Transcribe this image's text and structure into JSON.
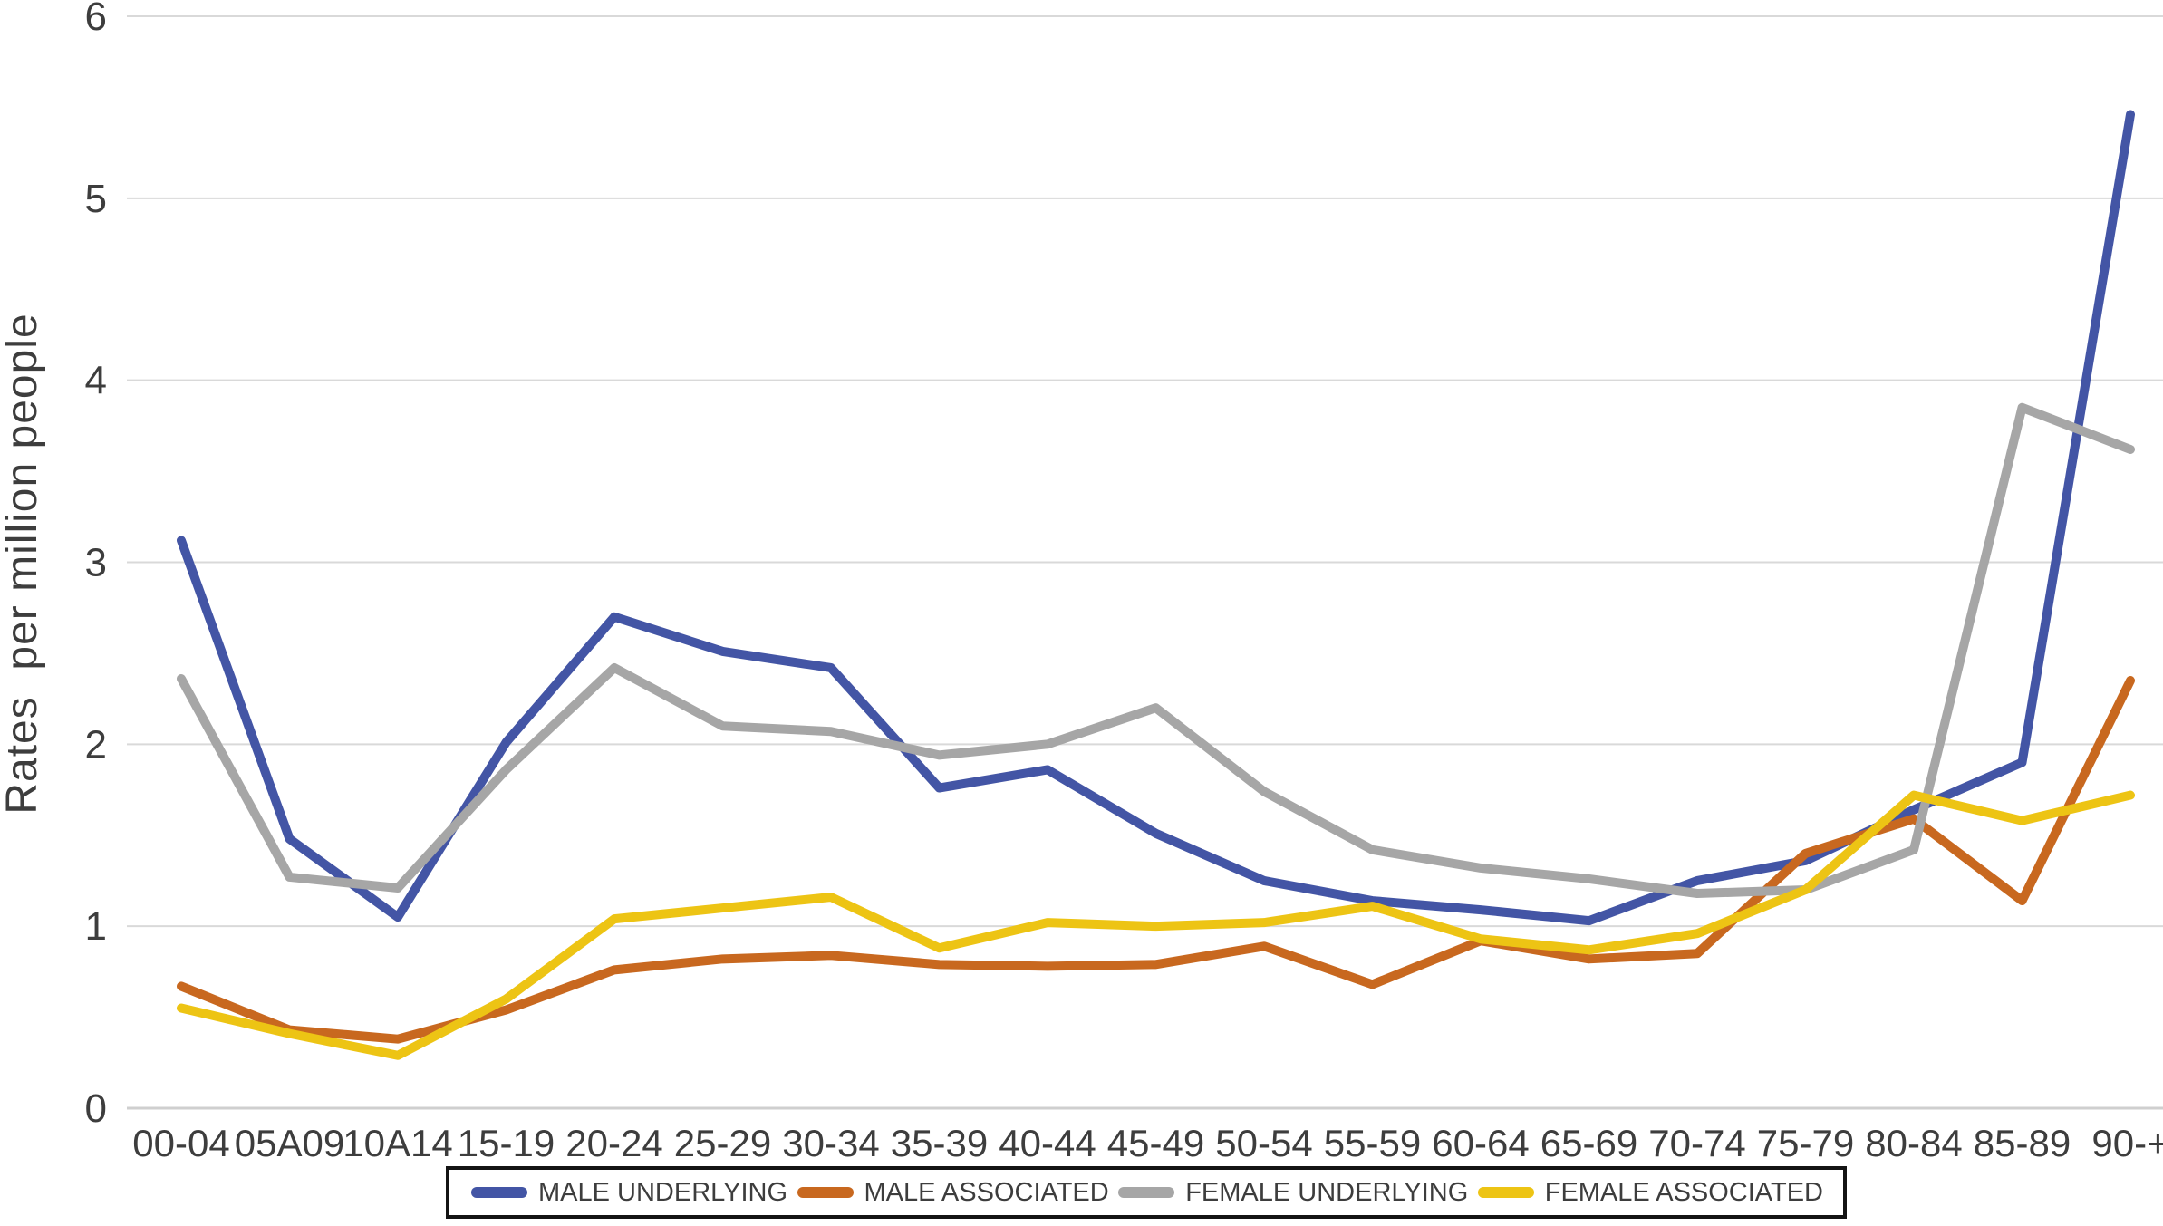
{
  "figure": {
    "background": "#ffffff",
    "text_color": "#3d3d3d",
    "gridline_color": "#d9d9d9",
    "axis_line_color": "#cfcfcf",
    "legend_border_color": "#141414"
  },
  "chart_data": {
    "type": "line",
    "title": "",
    "xlabel": "",
    "ylabel": "Rates  per million people",
    "ylim": [
      0,
      6
    ],
    "yticks": [
      0,
      1,
      2,
      3,
      4,
      5,
      6
    ],
    "grid": "horizontal",
    "legend_position": "bottom",
    "categories": [
      "00-04",
      "05A09",
      "10A14",
      "15-19",
      "20-24",
      "25-29",
      "30-34",
      "35-39",
      "40-44",
      "45-49",
      "50-54",
      "55-59",
      "60-64",
      "65-69",
      "70-74",
      "75-79",
      "80-84",
      "85-89",
      "90-+"
    ],
    "series": [
      {
        "name": "MALE UNDERLYING",
        "color": "#4355a5",
        "values": [
          3.12,
          1.48,
          1.05,
          2.01,
          2.7,
          2.51,
          2.42,
          1.76,
          1.86,
          1.51,
          1.25,
          1.14,
          1.09,
          1.03,
          1.25,
          1.36,
          1.64,
          1.9,
          5.46
        ]
      },
      {
        "name": "MALE ASSOCIATED",
        "color": "#c8681f",
        "values": [
          0.67,
          0.43,
          0.38,
          0.54,
          0.76,
          0.82,
          0.84,
          0.79,
          0.78,
          0.79,
          0.89,
          0.68,
          0.92,
          0.82,
          0.85,
          1.4,
          1.59,
          1.14,
          2.35
        ]
      },
      {
        "name": "FEMALE UNDERLYING",
        "color": "#a6a6a6",
        "values": [
          2.36,
          1.27,
          1.21,
          1.86,
          2.42,
          2.1,
          2.07,
          1.94,
          2.0,
          2.2,
          1.74,
          1.42,
          1.32,
          1.26,
          1.18,
          1.2,
          1.42,
          3.85,
          3.62
        ]
      },
      {
        "name": "FEMALE ASSOCIATED",
        "color": "#edc414",
        "values": [
          0.55,
          0.41,
          0.29,
          0.6,
          1.04,
          1.1,
          1.16,
          0.88,
          1.02,
          1.0,
          1.02,
          1.11,
          0.93,
          0.87,
          0.96,
          1.2,
          1.72,
          1.58,
          1.72
        ]
      }
    ]
  }
}
